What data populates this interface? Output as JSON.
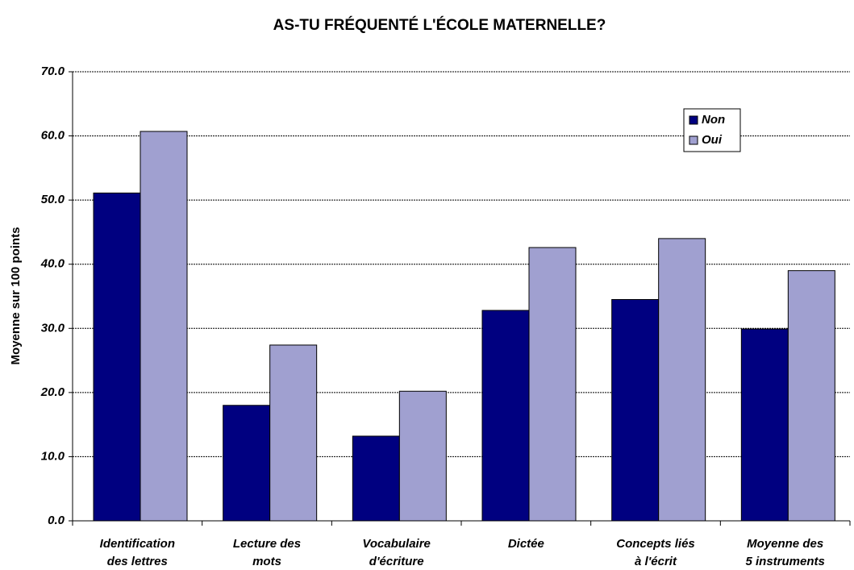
{
  "chart_data": {
    "type": "bar",
    "title": "AS-TU FRÉQUENTÉ L'ÉCOLE MATERNELLE?",
    "y_label": "Moyenne sur 100 points",
    "categories": [
      [
        "Identification",
        "des lettres"
      ],
      [
        "Lecture des",
        "mots"
      ],
      [
        "Vocabulaire",
        "d'écriture"
      ],
      [
        "Dictée"
      ],
      [
        "Concepts liés",
        "à l'écrit"
      ],
      [
        "Moyenne des",
        "5 instruments"
      ]
    ],
    "series": [
      {
        "name": "Non",
        "color": "#000080",
        "values": [
          51.1,
          18.0,
          13.2,
          32.8,
          34.5,
          29.9
        ]
      },
      {
        "name": "Oui",
        "color": "#a0a0d0",
        "values": [
          60.7,
          27.4,
          20.2,
          42.6,
          44.0,
          39.0
        ]
      }
    ],
    "ylim": [
      0,
      70
    ],
    "yticks": [
      {
        "value": 0,
        "label": "0.0"
      },
      {
        "value": 10,
        "label": "10.0"
      },
      {
        "value": 20,
        "label": "20.0"
      },
      {
        "value": 30,
        "label": "30.0"
      },
      {
        "value": 40,
        "label": "40.0"
      },
      {
        "value": 50,
        "label": "50.0"
      },
      {
        "value": 60,
        "label": "60.0"
      },
      {
        "value": 70,
        "label": "70.0"
      }
    ],
    "grid": true
  }
}
